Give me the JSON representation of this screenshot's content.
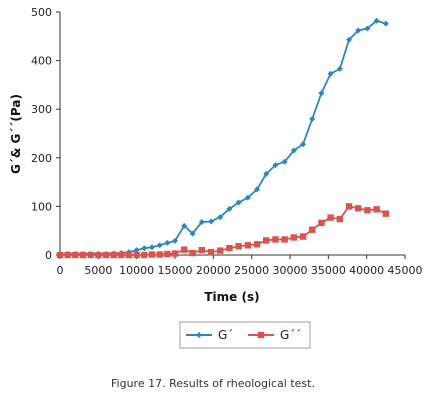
{
  "caption": {
    "label": "Figure 17.",
    "text": " Results of rheological test."
  },
  "chart_data": {
    "type": "line",
    "xlabel": "Time (s)",
    "ylabel": "G´& G´´(Pa)",
    "xlim": [
      0,
      45000
    ],
    "ylim": [
      0,
      500
    ],
    "xticks": [
      0,
      5000,
      10000,
      15000,
      20000,
      25000,
      30000,
      35000,
      40000,
      45000
    ],
    "yticks": [
      0,
      100,
      200,
      300,
      400,
      500
    ],
    "grid": false,
    "legend_position": "bottom-center",
    "series": [
      {
        "name": "G´",
        "color": "#2e86c1",
        "marker": "diamond",
        "points": [
          [
            0,
            2
          ],
          [
            1000,
            2
          ],
          [
            2000,
            2
          ],
          [
            3000,
            2
          ],
          [
            4000,
            2
          ],
          [
            5000,
            2
          ],
          [
            6000,
            2
          ],
          [
            7000,
            3
          ],
          [
            8000,
            4
          ],
          [
            9000,
            6
          ],
          [
            10000,
            10
          ],
          [
            11000,
            14
          ],
          [
            12000,
            16
          ],
          [
            13000,
            20
          ],
          [
            14000,
            25
          ],
          [
            15000,
            29
          ],
          [
            16200,
            60
          ],
          [
            17300,
            44
          ],
          [
            18500,
            68
          ],
          [
            19700,
            69
          ],
          [
            20900,
            78
          ],
          [
            22100,
            95
          ],
          [
            23300,
            108
          ],
          [
            24500,
            118
          ],
          [
            25700,
            135
          ],
          [
            26900,
            167
          ],
          [
            28100,
            185
          ],
          [
            29300,
            192
          ],
          [
            30500,
            215
          ],
          [
            31700,
            228
          ],
          [
            32900,
            280
          ],
          [
            34100,
            333
          ],
          [
            35300,
            373
          ],
          [
            36500,
            383
          ],
          [
            37700,
            443
          ],
          [
            38900,
            462
          ],
          [
            40100,
            466
          ],
          [
            41300,
            482
          ],
          [
            42500,
            476
          ]
        ]
      },
      {
        "name": "G´´",
        "color": "#d9534f",
        "marker": "square",
        "points": [
          [
            0,
            0
          ],
          [
            1000,
            0
          ],
          [
            2000,
            0
          ],
          [
            3000,
            0
          ],
          [
            4000,
            0
          ],
          [
            5000,
            0
          ],
          [
            6000,
            0
          ],
          [
            7000,
            0
          ],
          [
            8000,
            0
          ],
          [
            9000,
            0
          ],
          [
            10000,
            0
          ],
          [
            11000,
            0
          ],
          [
            12000,
            1
          ],
          [
            13000,
            1
          ],
          [
            14000,
            2
          ],
          [
            15000,
            3
          ],
          [
            16200,
            11
          ],
          [
            17300,
            4
          ],
          [
            18500,
            10
          ],
          [
            19700,
            6
          ],
          [
            20900,
            9
          ],
          [
            22100,
            14
          ],
          [
            23300,
            18
          ],
          [
            24500,
            20
          ],
          [
            25700,
            22
          ],
          [
            26900,
            30
          ],
          [
            28100,
            32
          ],
          [
            29300,
            32
          ],
          [
            30500,
            36
          ],
          [
            31700,
            38
          ],
          [
            32900,
            52
          ],
          [
            34100,
            66
          ],
          [
            35300,
            77
          ],
          [
            36500,
            74
          ],
          [
            37700,
            100
          ],
          [
            38900,
            96
          ],
          [
            40100,
            92
          ],
          [
            41300,
            94
          ],
          [
            42500,
            85
          ]
        ]
      }
    ]
  }
}
